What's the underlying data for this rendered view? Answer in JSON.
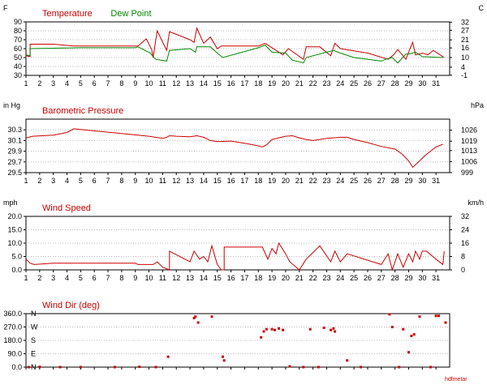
{
  "chart_data": [
    {
      "id": "temp",
      "type": "line",
      "title_parts": [
        {
          "text": "Temperature",
          "color": "#cc0000"
        },
        {
          "text": "Dew Point",
          "color": "#008800"
        }
      ],
      "unit_left": "F",
      "unit_right": "C",
      "ylim": [
        30,
        90
      ],
      "right_lim": [
        -1.1,
        32.2
      ],
      "yticks": [
        "30",
        "40",
        "50",
        "60",
        "70",
        "80",
        "90"
      ],
      "right_ticks": [
        "-1",
        "4",
        "10",
        "16",
        "21",
        "27",
        "32"
      ],
      "xlim": [
        1,
        32
      ],
      "series": [
        {
          "name": "Temperature",
          "color": "#cc0000",
          "x": [
            1,
            1.3,
            1.3,
            3,
            4.5,
            6,
            9,
            9.2,
            9.8,
            10.2,
            10.3,
            10.6,
            11.3,
            11.5,
            12,
            13,
            13.3,
            13.5,
            14,
            14.5,
            15,
            15.3,
            18,
            18.5,
            19.8,
            20.2,
            21.3,
            21.5,
            22.5,
            23.3,
            23.6,
            24,
            26,
            27.5,
            27.9,
            28.2,
            28.8,
            29.1,
            29.3,
            29.5,
            30,
            30.4,
            30.8,
            31.4,
            31.6
          ],
          "y": [
            52,
            51,
            65,
            65,
            63,
            63,
            63,
            63,
            71,
            59,
            50,
            80,
            58,
            79,
            76,
            70,
            67,
            83,
            66,
            73,
            60,
            63,
            63,
            66,
            53,
            60,
            48,
            62,
            62,
            52,
            66,
            60,
            55,
            48,
            53,
            59,
            48,
            60,
            67,
            53,
            55,
            53,
            58,
            52,
            50
          ]
        },
        {
          "name": "Dew Point",
          "color": "#008800",
          "x": [
            1,
            1.3,
            1.3,
            5,
            9,
            9.2,
            10.1,
            10.3,
            10.5,
            11.3,
            11.5,
            13,
            13.4,
            13.5,
            14.5,
            15,
            15.4,
            18,
            18.5,
            19,
            20,
            20.5,
            21.3,
            21.5,
            23,
            23.5,
            24,
            25,
            27,
            27.3,
            27.8,
            28.2,
            28.8,
            29,
            29.5,
            30,
            31.5
          ],
          "y": [
            53,
            52,
            60,
            61,
            61,
            62,
            55,
            51,
            48,
            46,
            58,
            60,
            56,
            62,
            62,
            55,
            50,
            61,
            64,
            56,
            55,
            47,
            44,
            50,
            56,
            58,
            55,
            50,
            46,
            48,
            50,
            44,
            54,
            54,
            56,
            51,
            50
          ]
        }
      ]
    },
    {
      "id": "pressure",
      "type": "line",
      "title_parts": [
        {
          "text": "Barometric Pressure",
          "color": "#cc0000"
        }
      ],
      "unit_left": "in Hg",
      "unit_right": "hPa",
      "ylim": [
        29.5,
        30.5
      ],
      "right_lim": [
        999,
        1033
      ],
      "yticks": [
        "29.5",
        "29.7",
        "29.9",
        "30.1",
        "30.3"
      ],
      "right_ticks": [
        "999",
        "1006",
        "1013",
        "1019",
        "1026"
      ],
      "xlim": [
        1,
        32
      ],
      "series": [
        {
          "name": "Barometric Pressure",
          "color": "#cc0000",
          "x": [
            1,
            1.5,
            3,
            4,
            4.5,
            6,
            8,
            10,
            11,
            11.3,
            11.5,
            12,
            13,
            13.5,
            14,
            14.5,
            15,
            16,
            17,
            18,
            18.3,
            18.6,
            19,
            19.5,
            20,
            20.5,
            21,
            21.5,
            22,
            23,
            24,
            24.5,
            25,
            26,
            27,
            28,
            28.5,
            29,
            29.3,
            29.8,
            30.2,
            30.6,
            31,
            31.5
          ],
          "y": [
            30.15,
            30.18,
            30.2,
            30.25,
            30.32,
            30.28,
            30.23,
            30.18,
            30.14,
            30.16,
            30.19,
            30.18,
            30.17,
            30.19,
            30.16,
            30.1,
            30.08,
            30.09,
            30.05,
            30.0,
            29.98,
            30.02,
            30.12,
            30.15,
            30.18,
            30.19,
            30.15,
            30.12,
            30.1,
            30.14,
            30.16,
            30.16,
            30.12,
            30.06,
            29.99,
            29.94,
            29.85,
            29.72,
            29.6,
            29.72,
            29.82,
            29.9,
            29.98,
            30.03
          ]
        }
      ]
    },
    {
      "id": "wind",
      "type": "line",
      "title_parts": [
        {
          "text": "Wind Speed",
          "color": "#cc0000"
        }
      ],
      "unit_left": "mph",
      "unit_right": "km/h",
      "ylim": [
        0,
        20
      ],
      "right_lim": [
        0,
        32
      ],
      "yticks": [
        "0.0",
        "5.0",
        "10.0",
        "15.0",
        "20.0"
      ],
      "right_ticks": [
        "0",
        "8",
        "16",
        "24",
        "32"
      ],
      "xlim": [
        1,
        32
      ],
      "series": [
        {
          "name": "Wind Speed",
          "color": "#cc0000",
          "x": [
            1,
            1.3,
            1.6,
            3,
            5,
            9,
            9.2,
            10.3,
            10.6,
            11,
            11.5,
            11.5,
            13,
            13.3,
            13.7,
            14,
            14.3,
            14.6,
            15,
            15.3,
            15.5,
            15.5,
            18,
            18.3,
            18.7,
            19,
            19.3,
            19.5,
            20,
            20.3,
            21,
            21.5,
            22,
            22.5,
            23.3,
            23.6,
            24,
            24.5,
            27,
            27.5,
            27.8,
            28.2,
            28.6,
            29,
            29.3,
            29.5,
            29.8,
            30,
            30.3,
            31,
            31.5,
            31.6
          ],
          "y": [
            4,
            2.5,
            2,
            2.5,
            2.5,
            2.5,
            2,
            2,
            3,
            1,
            0,
            7,
            3,
            7,
            4,
            5,
            3,
            9,
            2,
            0,
            0,
            8.5,
            8.5,
            8.5,
            4,
            8,
            6,
            10,
            6,
            3,
            0,
            4,
            6.5,
            9,
            3,
            7,
            3,
            6,
            2,
            6,
            0,
            6,
            1,
            6,
            3,
            7,
            4,
            7,
            7,
            4,
            2,
            7
          ]
        }
      ]
    },
    {
      "id": "winddir",
      "type": "scatter",
      "title_parts": [
        {
          "text": "Wind Dir (deg)",
          "color": "#cc0000"
        }
      ],
      "ylim": [
        0,
        360
      ],
      "yticks": [
        "0.0",
        "90.0",
        "180.0",
        "270.0",
        "360.0"
      ],
      "compass": [
        "N",
        "E",
        "S",
        "W",
        "N"
      ],
      "compass_color": "#cc0000",
      "xlim": [
        1,
        32
      ],
      "footer": "hdfmetar",
      "series": [
        {
          "name": "Wind Dir",
          "color": "#cc0000",
          "x": [
            1.2,
            2,
            3.5,
            5,
            7.5,
            9.3,
            10.5,
            11.4,
            13.3,
            13.4,
            13.6,
            14.6,
            15.4,
            15.5,
            18.2,
            18.4,
            18.6,
            19,
            19.2,
            19.5,
            19.8,
            20.3,
            21.3,
            21.8,
            22.4,
            22.8,
            23.3,
            23.5,
            23.6,
            24.5,
            25.5,
            27.6,
            27.8,
            28.3,
            28.6,
            29,
            29.2,
            29.4,
            29.8,
            30.6,
            31,
            31.2,
            31.7
          ],
          "y": [
            0,
            2,
            0,
            0,
            0,
            2,
            0,
            70,
            330,
            340,
            300,
            340,
            70,
            45,
            200,
            240,
            255,
            255,
            250,
            260,
            250,
            5,
            0,
            255,
            0,
            265,
            250,
            260,
            240,
            45,
            0,
            355,
            270,
            0,
            255,
            100,
            210,
            220,
            340,
            0,
            345,
            345,
            300
          ]
        }
      ]
    }
  ],
  "x_tick_labels": [
    "1",
    "2",
    "3",
    "4",
    "5",
    "6",
    "7",
    "8",
    "9",
    "10",
    "11",
    "12",
    "13",
    "14",
    "15",
    "16",
    "17",
    "18",
    "19",
    "20",
    "21",
    "22",
    "23",
    "24",
    "25",
    "26",
    "27",
    "28",
    "29",
    "30",
    "31"
  ]
}
